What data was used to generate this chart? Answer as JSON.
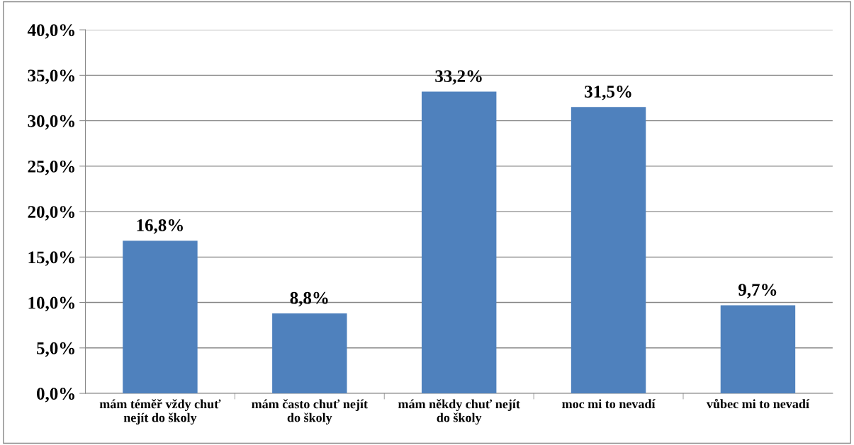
{
  "chart_data": {
    "type": "bar",
    "categories": [
      "mám téměř vždy chuť\nnejít do školy",
      "mám často chuť nejít\ndo školy",
      "mám někdy chuť nejít\ndo školy",
      "moc mi to nevadí",
      "vůbec mi to nevadí"
    ],
    "values": [
      16.8,
      8.8,
      33.2,
      31.5,
      9.7
    ],
    "value_labels": [
      "16,8%",
      "8,8%",
      "33,2%",
      "31,5%",
      "9,7%"
    ],
    "color": "#4f81bd",
    "ylim": [
      0,
      40
    ],
    "yticks": [
      {
        "value": 0,
        "label": "0,0%"
      },
      {
        "value": 5,
        "label": "5,0%"
      },
      {
        "value": 10,
        "label": "10,0%"
      },
      {
        "value": 15,
        "label": "15,0%"
      },
      {
        "value": 20,
        "label": "20,0%"
      },
      {
        "value": 25,
        "label": "25,0%"
      },
      {
        "value": 30,
        "label": "30,0%"
      },
      {
        "value": 35,
        "label": "35,0%"
      },
      {
        "value": 40,
        "label": "40,0%"
      }
    ],
    "grid": "y",
    "legend": false
  }
}
